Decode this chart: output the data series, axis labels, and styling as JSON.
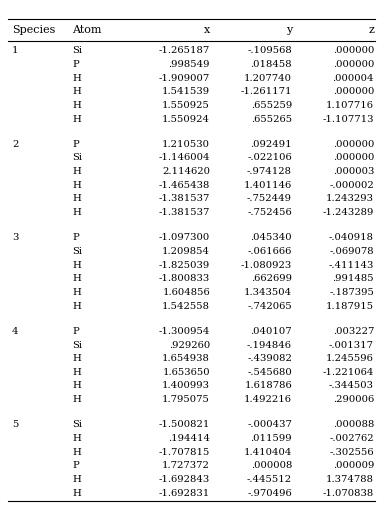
{
  "headers": [
    "Species",
    "Atom",
    "x",
    "y",
    "z"
  ],
  "rows": [
    [
      "1",
      "Si",
      "-1.265187",
      "-.109568",
      ".000000"
    ],
    [
      "",
      "P",
      ".998549",
      ".018458",
      ".000000"
    ],
    [
      "",
      "H",
      "-1.909007",
      "1.207740",
      ".000004"
    ],
    [
      "",
      "H",
      "1.541539",
      "-1.261171",
      ".000000"
    ],
    [
      "",
      "H",
      "1.550925",
      ".655259",
      "1.107716"
    ],
    [
      "",
      "H",
      "1.550924",
      ".655265",
      "-1.107713"
    ],
    [
      "2",
      "P",
      "1.210530",
      ".092491",
      ".000000"
    ],
    [
      "",
      "Si",
      "-1.146004",
      "-.022106",
      ".000000"
    ],
    [
      "",
      "H",
      "2.114620",
      "-.974128",
      ".000003"
    ],
    [
      "",
      "H",
      "-1.465438",
      "1.401146",
      "-.000002"
    ],
    [
      "",
      "H",
      "-1.381537",
      "-.752449",
      "1.243293"
    ],
    [
      "",
      "H",
      "-1.381537",
      "-.752456",
      "-1.243289"
    ],
    [
      "3",
      "P",
      "-1.097300",
      ".045340",
      "-.040918"
    ],
    [
      "",
      "Si",
      "1.209854",
      "-.061666",
      "-.069078"
    ],
    [
      "",
      "H",
      "-1.825039",
      "-1.080923",
      "-.411143"
    ],
    [
      "",
      "H",
      "-1.800833",
      ".662699",
      ".991485"
    ],
    [
      "",
      "H",
      "1.604856",
      "1.343504",
      "-.187395"
    ],
    [
      "",
      "H",
      "1.542558",
      "-.742065",
      "1.187915"
    ],
    [
      "4",
      "P",
      "-1.300954",
      ".040107",
      ".003227"
    ],
    [
      "",
      "Si",
      ".929260",
      "-.194846",
      "-.001317"
    ],
    [
      "",
      "H",
      "1.654938",
      "-.439082",
      "1.245596"
    ],
    [
      "",
      "H",
      "1.653650",
      "-.545680",
      "-1.221064"
    ],
    [
      "",
      "H",
      "1.400993",
      "1.618786",
      "-.344503"
    ],
    [
      "",
      "H",
      "1.795075",
      "1.492216",
      ".290006"
    ],
    [
      "5",
      "Si",
      "-1.500821",
      "-.000437",
      ".000088"
    ],
    [
      "",
      "H",
      ".194414",
      ".011599",
      "-.002762"
    ],
    [
      "",
      "H",
      "-1.707815",
      "1.410404",
      "-.302556"
    ],
    [
      "",
      "P",
      "1.727372",
      ".000008",
      ".000009"
    ],
    [
      "",
      "H",
      "-1.692843",
      "-.445512",
      "1.374788"
    ],
    [
      "",
      "H",
      "-1.692831",
      "-.970496",
      "-1.070838"
    ]
  ],
  "group_sizes": [
    6,
    6,
    6,
    6,
    6
  ],
  "bg_color": "#ffffff",
  "text_color": "#000000",
  "font_size": 7.2,
  "header_font_size": 8.0
}
